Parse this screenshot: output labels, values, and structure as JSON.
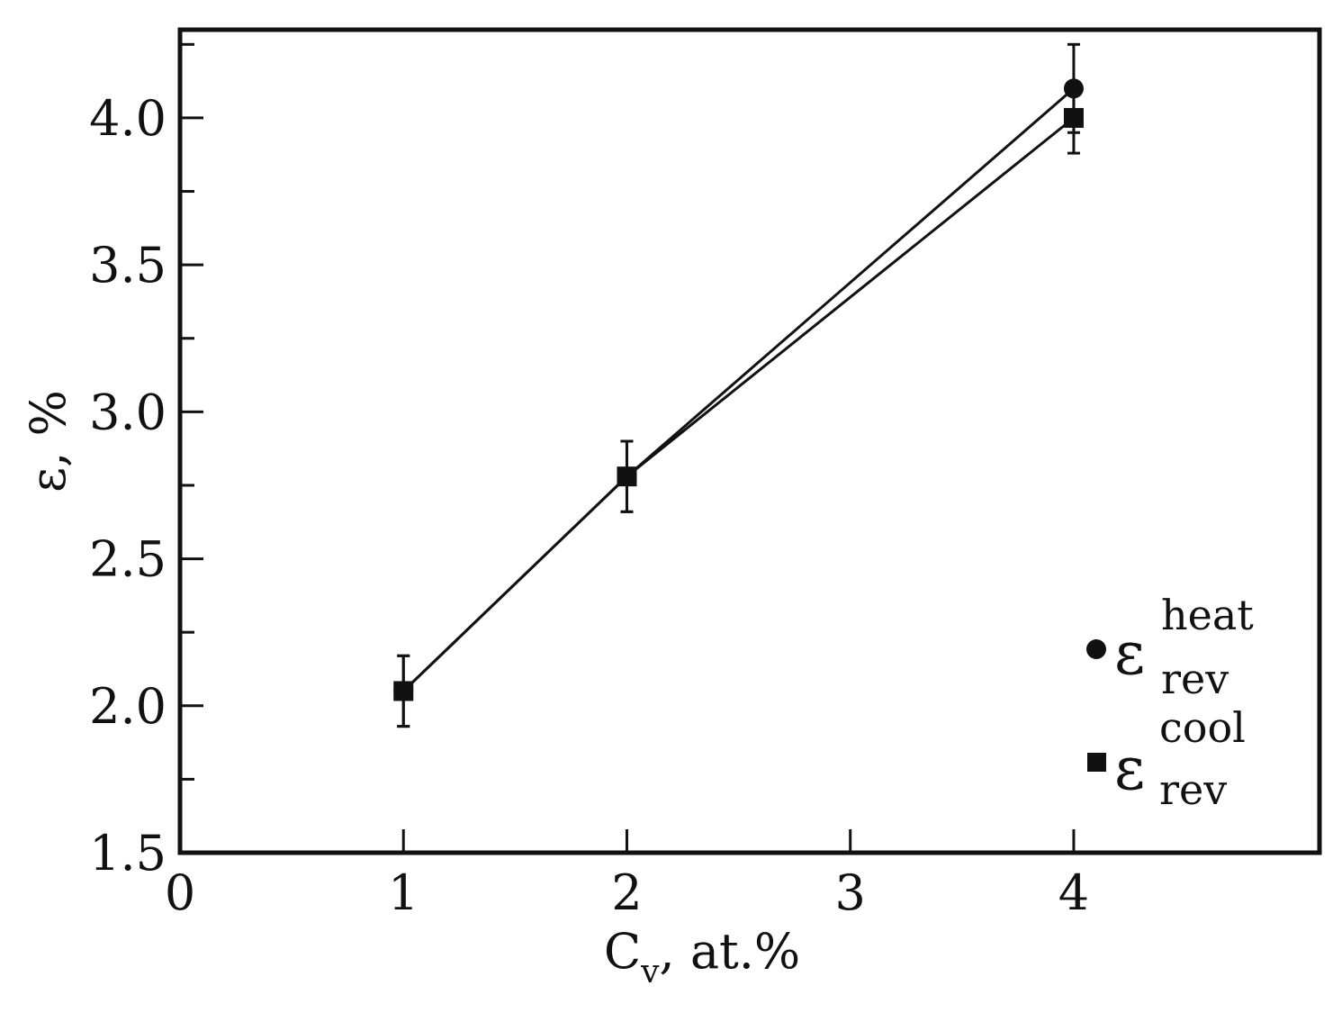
{
  "chart_data": {
    "type": "line",
    "title": "",
    "xlabel": {
      "main": "C",
      "sub": "v",
      "rest": ", at.%"
    },
    "ylabel": "ε, %",
    "xlim": [
      0,
      5.1
    ],
    "ylim": [
      1.5,
      4.3
    ],
    "xticks": [
      {
        "value": 0,
        "label": "0"
      },
      {
        "value": 1,
        "label": "1"
      },
      {
        "value": 2,
        "label": "2"
      },
      {
        "value": 3,
        "label": "3"
      },
      {
        "value": 4,
        "label": "4"
      }
    ],
    "yticks_major": [
      {
        "value": 1.5,
        "label": "1.5"
      },
      {
        "value": 2.0,
        "label": "2.0"
      },
      {
        "value": 2.5,
        "label": "2.5"
      },
      {
        "value": 3.0,
        "label": "3.0"
      },
      {
        "value": 3.5,
        "label": "3.5"
      },
      {
        "value": 4.0,
        "label": "4.0"
      }
    ],
    "yticks_minor": [
      1.75,
      2.25,
      2.75,
      3.25,
      3.75,
      4.25
    ],
    "grid": false,
    "legend_position": "bottom-right",
    "colors": {
      "axis": "#111111",
      "series": "#111111"
    },
    "series": [
      {
        "name": {
          "main": "ε",
          "sup": "heat",
          "sub": "rev"
        },
        "marker": "circle",
        "x": [
          1,
          2,
          4
        ],
        "y": [
          2.05,
          2.78,
          4.1
        ],
        "err": [
          0.12,
          0.12,
          0.15
        ]
      },
      {
        "name": {
          "main": "ε",
          "sup": "cool",
          "sub": "rev"
        },
        "marker": "square",
        "x": [
          1,
          2,
          4
        ],
        "y": [
          2.05,
          2.78,
          4.0
        ],
        "err": [
          0.12,
          0.12,
          0.12
        ]
      }
    ]
  }
}
